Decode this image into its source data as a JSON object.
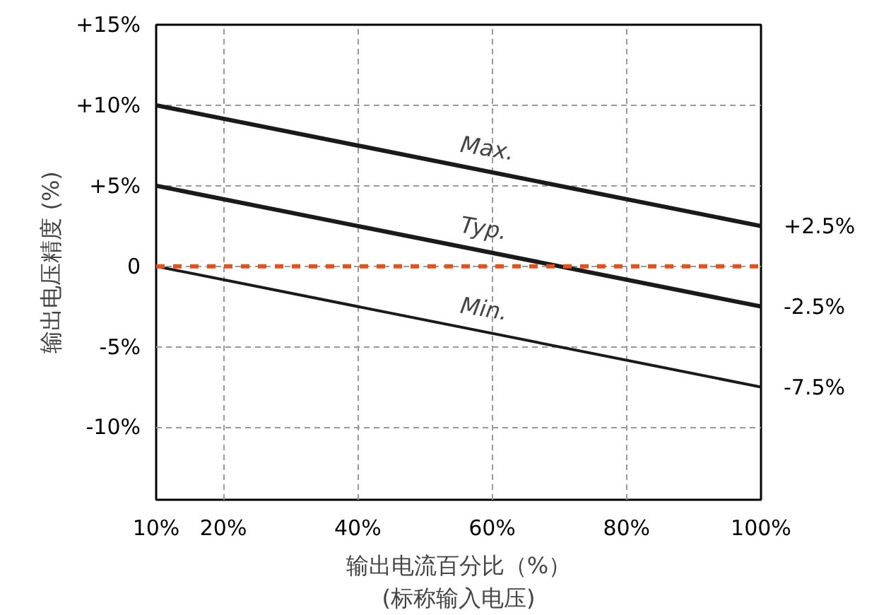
{
  "chart_data": {
    "type": "line",
    "xlabel": "输出电流百分比（%）\n(标称输入电压)",
    "ylabel": "输出电压精度 (%)",
    "x": [
      10,
      100
    ],
    "series": [
      {
        "name": "Max.",
        "color": "#1a1a1a",
        "values": [
          10,
          2.5
        ],
        "value_labels": [
          null,
          "+2.5%"
        ]
      },
      {
        "name": "Typ.",
        "color": "#1a1a1a",
        "values": [
          5,
          -2.5
        ],
        "value_labels": [
          null,
          "-2.5%"
        ]
      },
      {
        "name": "Min.",
        "color": "#1a1a1a",
        "values": [
          0,
          -7.5
        ],
        "value_labels": [
          null,
          "-7.5%"
        ]
      }
    ],
    "xlim": [
      10,
      100
    ],
    "ylim": [
      -14.5,
      15
    ],
    "xticks": [
      {
        "value": 10,
        "label": "10%"
      },
      {
        "value": 20,
        "label": "20%"
      },
      {
        "value": 40,
        "label": "40%"
      },
      {
        "value": 60,
        "label": "60%"
      },
      {
        "value": 80,
        "label": "80%"
      },
      {
        "value": 100,
        "label": "100%"
      }
    ],
    "yticks": [
      {
        "value": 15,
        "label": "+15%"
      },
      {
        "value": 10,
        "label": "+10%"
      },
      {
        "value": 5,
        "label": "+5%"
      },
      0,
      {
        "value": -5,
        "label": "-5%"
      },
      {
        "value": -10,
        "label": "-10%"
      }
    ],
    "ref_lines": [
      {
        "axis": "y",
        "value": 0,
        "label": null,
        "color": "#e0521f",
        "line_style": "dashed"
      }
    ],
    "grid": true,
    "legend": false,
    "marker": "none",
    "line_style": "solid"
  }
}
